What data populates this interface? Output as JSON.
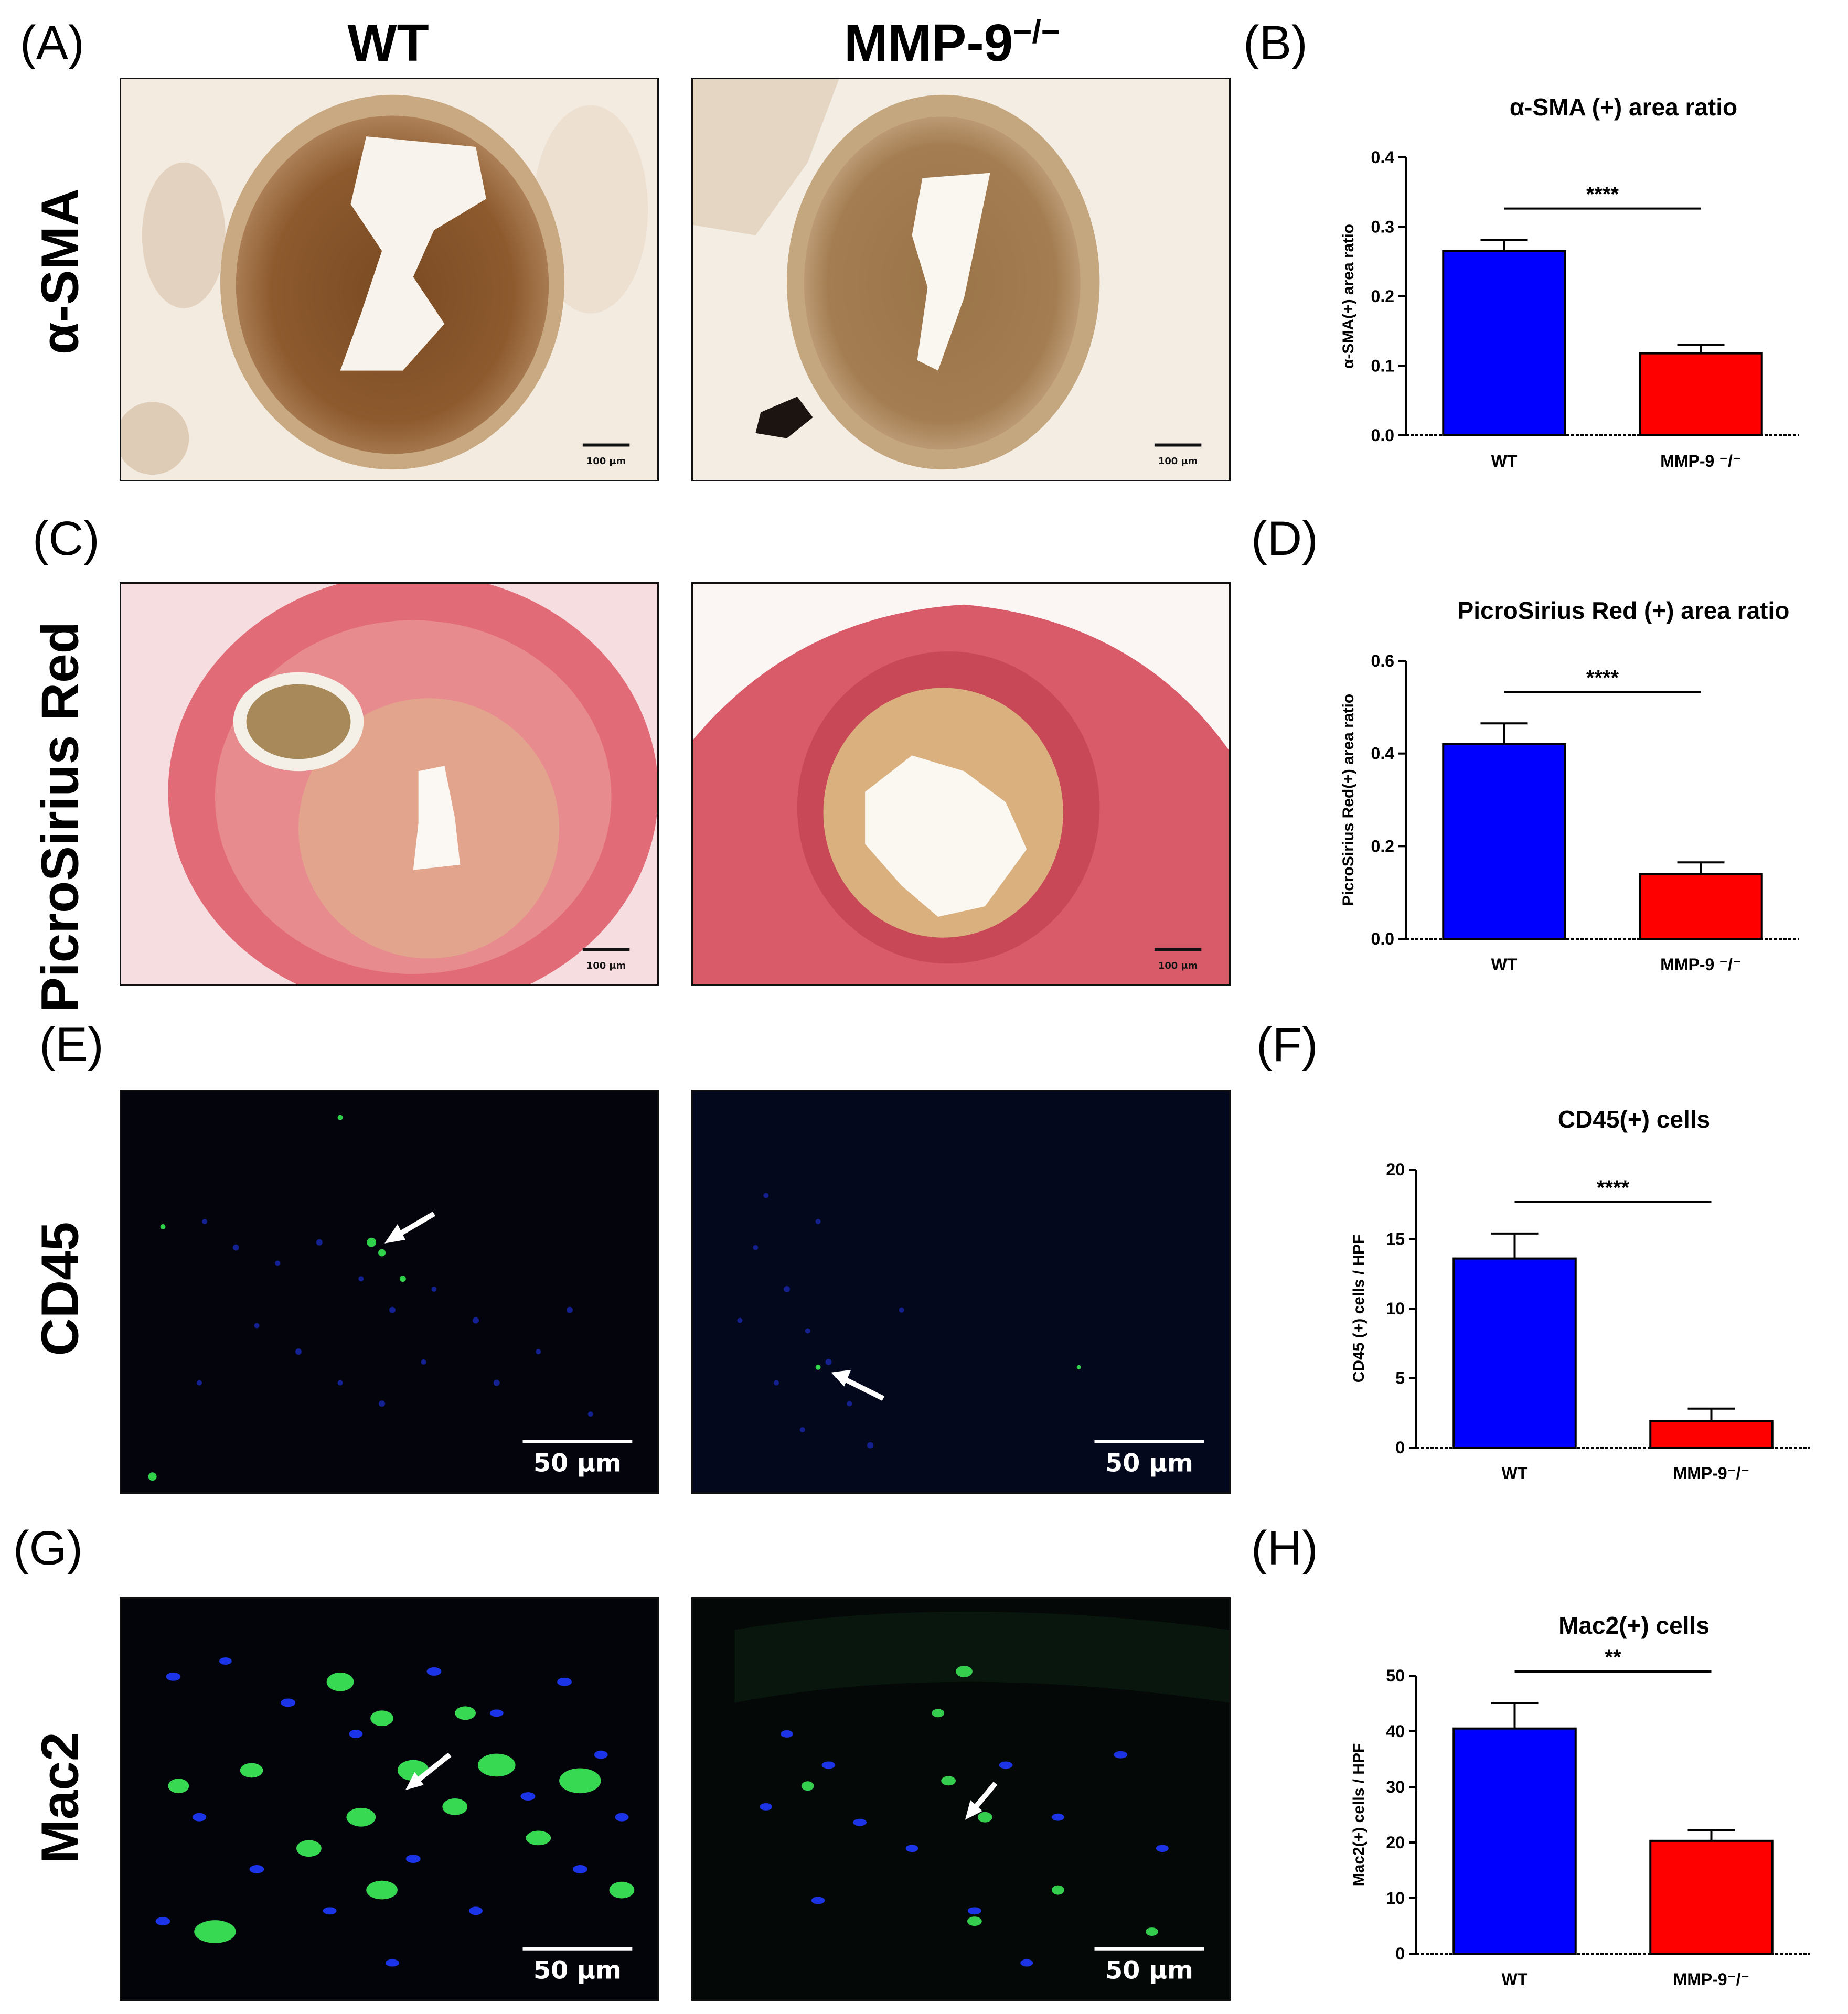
{
  "panel_letters": {
    "A": "(A)",
    "B": "(B)",
    "C": "(C)",
    "D": "(D)",
    "E": "(E)",
    "F": "(F)",
    "G": "(G)",
    "H": "(H)"
  },
  "column_headers": {
    "wt": "WT",
    "ko_base": "MMP-9",
    "ko_sup": "−/−"
  },
  "row_labels": {
    "sma": "α-SMA",
    "psr": "PicroSirius Red",
    "cd45": "CD45",
    "mac2": "Mac2"
  },
  "scale_bars": {
    "brightfield": "100 μm",
    "fluorescent": "50 μm"
  },
  "colors": {
    "wt_bar": "#0000ff",
    "ko_bar": "#ff0000",
    "sma_stain": "#8b5a2b",
    "psr_stain": "#d9414f",
    "nuclei": "#1a2bff",
    "marker": "#2fd24a"
  },
  "chart_data": [
    {
      "id": "B",
      "type": "bar",
      "title": "α-SMA (+) area ratio",
      "ylabel": "α-SMA(+) area ratio",
      "categories": [
        "WT",
        "MMP-9 ⁻/⁻"
      ],
      "values": [
        0.265,
        0.118
      ],
      "errors": [
        0.016,
        0.012
      ],
      "ylim": [
        0,
        0.4
      ],
      "yticks": [
        "0.0",
        "0.1",
        "0.2",
        "0.3",
        "0.4"
      ],
      "significance": "****",
      "colors": [
        "#0000ff",
        "#ff0000"
      ]
    },
    {
      "id": "D",
      "type": "bar",
      "title": "PicroSirius Red (+) area ratio",
      "ylabel": "PicroSirius Red(+) area ratio",
      "categories": [
        "WT",
        "MMP-9 ⁻/⁻"
      ],
      "values": [
        0.42,
        0.14
      ],
      "errors": [
        0.045,
        0.025
      ],
      "ylim": [
        0,
        0.6
      ],
      "yticks": [
        "0.0",
        "0.2",
        "0.4",
        "0.6"
      ],
      "significance": "****",
      "colors": [
        "#0000ff",
        "#ff0000"
      ]
    },
    {
      "id": "F",
      "type": "bar",
      "title": "CD45(+) cells",
      "ylabel": "CD45 (+) cells / HPF",
      "categories": [
        "WT",
        "MMP-9⁻/⁻"
      ],
      "values": [
        13.6,
        1.9
      ],
      "errors": [
        1.8,
        0.9
      ],
      "ylim": [
        0,
        20
      ],
      "yticks": [
        "0",
        "5",
        "10",
        "15",
        "20"
      ],
      "significance": "****",
      "colors": [
        "#0000ff",
        "#ff0000"
      ]
    },
    {
      "id": "H",
      "type": "bar",
      "title": "Mac2(+) cells",
      "ylabel": "Mac2(+) cells / HPF",
      "categories": [
        "WT",
        "MMP-9⁻/⁻"
      ],
      "values": [
        40.5,
        20.3
      ],
      "errors": [
        4.6,
        1.9
      ],
      "ylim": [
        0,
        50
      ],
      "yticks": [
        "0",
        "10",
        "20",
        "30",
        "40",
        "50"
      ],
      "significance": "**",
      "colors": [
        "#0000ff",
        "#ff0000"
      ]
    }
  ]
}
